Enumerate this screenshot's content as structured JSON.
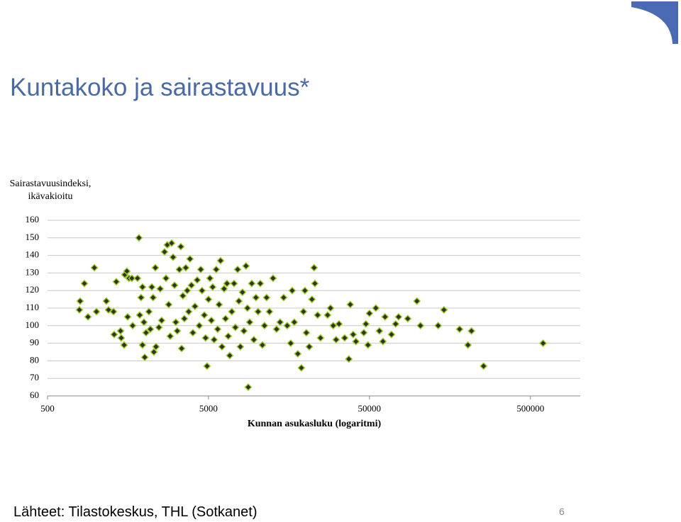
{
  "title": "Kuntakoko ja sairastavuus*",
  "footer": {
    "source": "Lähteet: Tilastokeskus, THL (Sotkanet)",
    "page_number": "6"
  },
  "chart_data": {
    "type": "scatter",
    "y_label": "Sairastavuusindeksi, ikävakioitu",
    "x_label": "Kunnan asukasluku (logaritmi)",
    "log_x": true,
    "grid": true,
    "color": "#2f3324",
    "edge_color": "#9ccc2c",
    "xlim": [
      500,
      1000000
    ],
    "xticks": [
      500,
      5000,
      50000,
      500000
    ],
    "ylim": [
      60,
      160
    ],
    "yticks": [
      60,
      70,
      80,
      90,
      100,
      110,
      120,
      130,
      140,
      150,
      160
    ],
    "x": [
      789,
      797,
      847,
      892,
      977,
      1007,
      1160,
      1196,
      1285,
      1297,
      1337,
      1421,
      1435,
      1496,
      1510,
      1556,
      1573,
      1606,
      1671,
      1690,
      1811,
      1849,
      1870,
      1905,
      1945,
      1945,
      1986,
      2009,
      2046,
      2133,
      2178,
      2223,
      2264,
      2290,
      2338,
      2360,
      2460,
      2506,
      2558,
      2667,
      2722,
      2773,
      2831,
      2891,
      2951,
      3013,
      3076,
      3133,
      3199,
      3296,
      3365,
      3404,
      3467,
      3540,
      3614,
      3690,
      3767,
      3837,
      3917,
      3999,
      4121,
      4256,
      4385,
      4477,
      4560,
      4710,
      4797,
      4898,
      5000,
      5105,
      5210,
      5310,
      5420,
      5585,
      5700,
      5820,
      5945,
      6065,
      6250,
      6380,
      6515,
      6635,
      6775,
      6980,
      7210,
      7345,
      7585,
      7725,
      7890,
      8130,
      8300,
      8550,
      8730,
      8830,
      9015,
      9290,
      9570,
      9860,
      10160,
      10495,
      10815,
      11140,
      11480,
      11965,
      12590,
      13245,
      13930,
      14655,
      15415,
      16215,
      16555,
      17060,
      17945,
      18880,
      19450,
      19860,
      20275,
      21135,
      21975,
      22645,
      22905,
      23820,
      24830,
      27475,
      28640,
      29785,
      31045,
      32355,
      35075,
      37235,
      38015,
      39625,
      41205,
      46130,
      47530,
      48975,
      50000,
      54800,
      57650,
      60650,
      62500,
      68550,
      72750,
      75850,
      86500,
      98600,
      103750,
      133650,
      145200,
      181550,
      204650,
      215250,
      255850,
      599500
    ],
    "values": [
      109,
      114,
      124,
      105,
      133,
      108,
      114,
      109,
      108,
      95,
      125,
      97,
      93,
      89,
      129,
      131,
      105,
      127,
      127,
      100,
      127,
      150,
      106,
      116,
      122,
      89,
      102,
      82,
      96,
      108,
      98,
      122,
      116,
      85,
      133,
      88,
      99,
      121,
      103,
      142,
      127,
      146,
      112,
      94,
      147,
      139,
      123,
      102,
      97,
      132,
      145,
      87,
      117,
      104,
      133,
      120,
      108,
      138,
      123,
      96,
      111,
      126,
      100,
      132,
      120,
      106,
      93,
      77,
      115,
      127,
      103,
      122,
      92,
      132,
      98,
      112,
      137,
      88,
      121,
      104,
      124,
      94,
      83,
      108,
      124,
      99,
      132,
      114,
      88,
      119,
      97,
      134,
      110,
      65,
      102,
      124,
      92,
      116,
      108,
      124,
      89,
      100,
      116,
      108,
      127,
      98,
      102,
      116,
      100,
      90,
      120,
      102,
      84,
      76,
      108,
      120,
      96,
      88,
      115,
      133,
      124,
      106,
      93,
      106,
      110,
      100,
      92,
      101,
      93,
      81,
      112,
      95,
      91,
      96,
      101,
      89,
      107,
      110,
      97,
      91,
      105,
      95,
      101,
      105,
      104,
      114,
      100,
      100,
      109,
      98,
      89,
      97,
      77,
      90
    ]
  }
}
